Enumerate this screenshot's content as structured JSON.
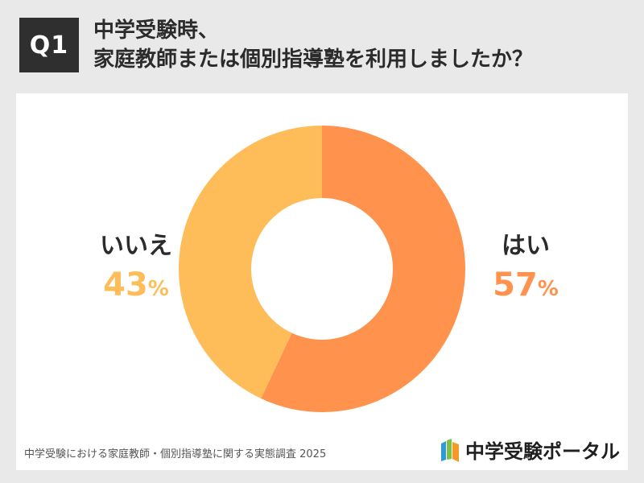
{
  "header": {
    "badge": "Q1",
    "title_line1": "中学受験時、",
    "title_line2": "家庭教師または個別指導塾を利用しましたか？"
  },
  "chart_data": {
    "type": "pie",
    "donut": true,
    "categories": [
      "はい",
      "いいえ"
    ],
    "values": [
      57,
      43
    ],
    "value_labels": [
      "57",
      "43"
    ],
    "unit": "%",
    "colors": [
      "#ff924c",
      "#ffbd5a"
    ]
  },
  "footer": {
    "source": "中学受験における家庭教師・個別指導塾に関する実態調査 2025",
    "brand": "中学受験ポータル"
  },
  "colors": {
    "background": "#e9e9ea",
    "badge_bg": "#2f2f2f",
    "yes": "#ff924c",
    "no": "#ffbd5a"
  }
}
